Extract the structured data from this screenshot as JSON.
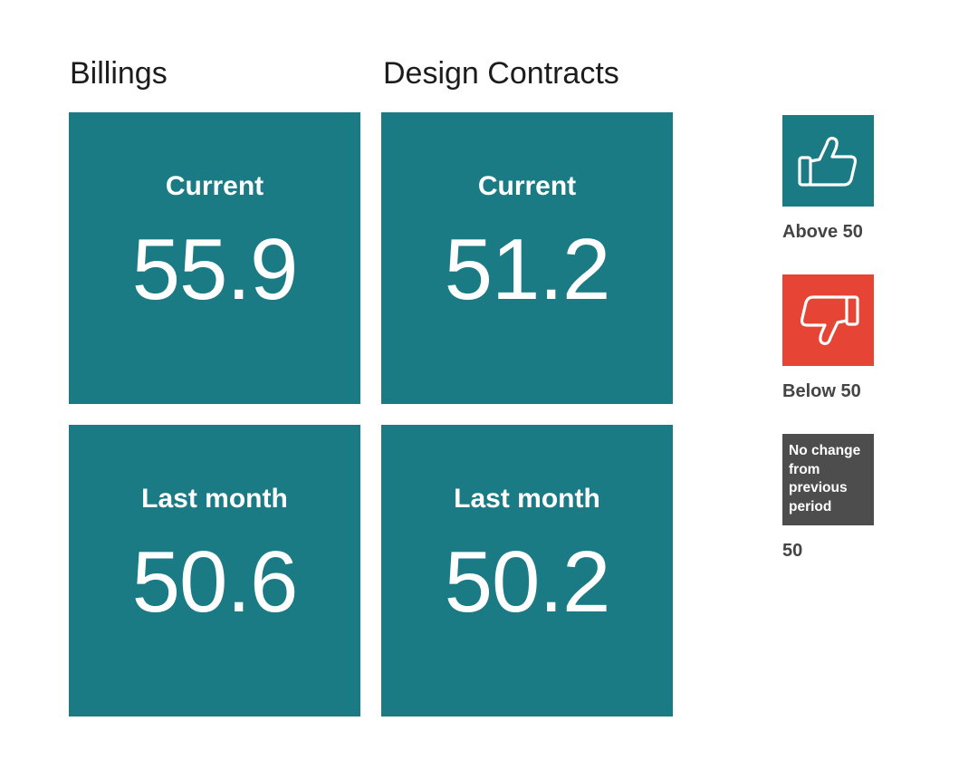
{
  "columns": [
    {
      "title": "Billings",
      "tiles": [
        {
          "label": "Current",
          "value": "55.9"
        },
        {
          "label": "Last month",
          "value": "50.6"
        }
      ]
    },
    {
      "title": "Design Contracts",
      "tiles": [
        {
          "label": "Current",
          "value": "51.2"
        },
        {
          "label": "Last month",
          "value": "50.2"
        }
      ]
    }
  ],
  "legend": {
    "above": {
      "icon": "thumbs-up-icon",
      "label": "Above 50",
      "color": "#1b7b85"
    },
    "below": {
      "icon": "thumbs-down-icon",
      "label": "Below 50",
      "color": "#e64434"
    },
    "nochange": {
      "box_text": "No change from previous period",
      "label": "50",
      "color": "#4d4d4d"
    }
  },
  "colors": {
    "tile": "#1b7b85"
  }
}
